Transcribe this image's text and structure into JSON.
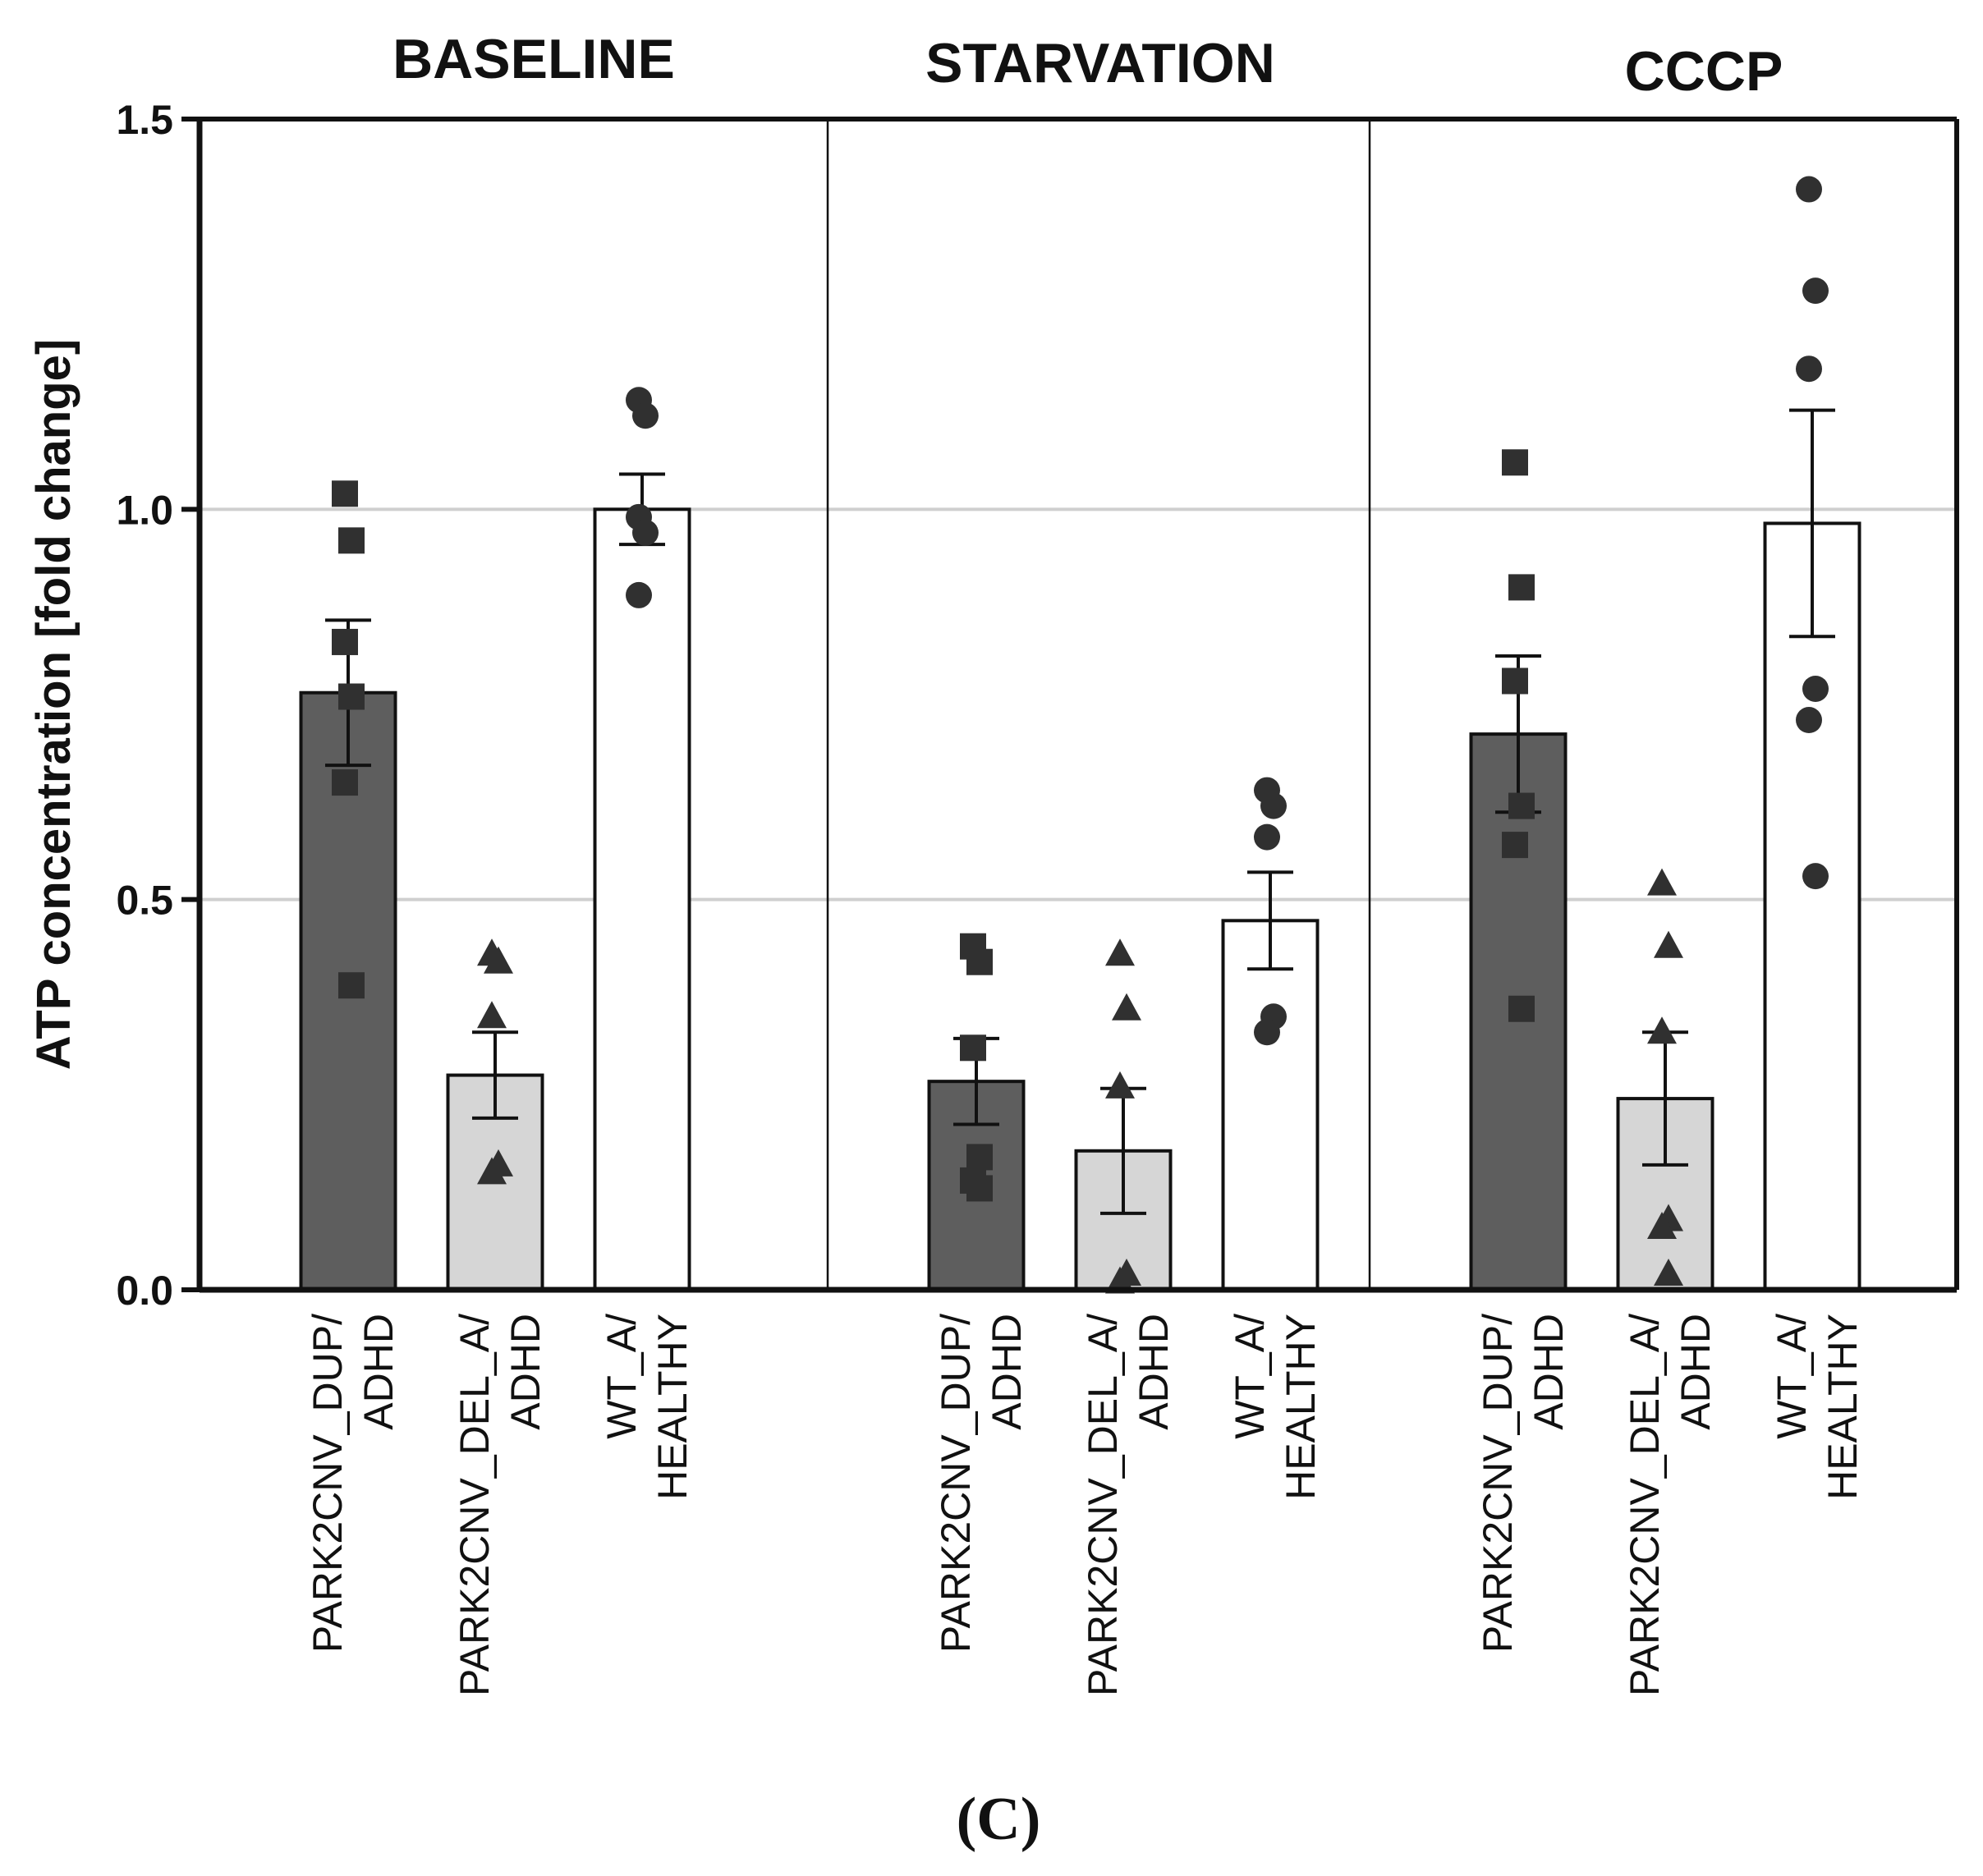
{
  "chart_data": {
    "type": "bar",
    "ylabel": "ATP concentration [fold change]",
    "ylim": [
      0,
      1.5
    ],
    "yticks": [
      "0.0",
      "0.5",
      "1.0",
      "1.5"
    ],
    "ytick_values": [
      0,
      0.5,
      1.0,
      1.5
    ],
    "gridlines": [
      0.5,
      1.0
    ],
    "caption": "(C)",
    "categories": [
      {
        "line1": "PARK2CNV_DUP/",
        "line2": "ADHD"
      },
      {
        "line1": "PARK2CNV_DEL_A/",
        "line2": "ADHD"
      },
      {
        "line1": "WT_A/",
        "line2": "HEALTHY"
      }
    ],
    "colors": {
      "dup": "#5e5e5e",
      "del": "#d6d6d6",
      "wt": "#ffffff",
      "dup_marker": "#303030",
      "del_marker": "#303030",
      "wt_marker": "#303030"
    },
    "panels": [
      {
        "title": "BASELINE",
        "bars": [
          {
            "category": "PARK2CNV_DUP/ADHD",
            "mean": 0.765,
            "sem": 0.093,
            "marker": "square",
            "points": [
              1.02,
              0.96,
              0.83,
              0.76,
              0.65,
              0.39
            ]
          },
          {
            "category": "PARK2CNV_DEL_A/ADHD",
            "mean": 0.275,
            "sem": 0.055,
            "marker": "triangle",
            "points": [
              0.43,
              0.42,
              0.35,
              0.16,
              0.15
            ]
          },
          {
            "category": "WT_A/HEALTHY",
            "mean": 1.0,
            "sem": 0.045,
            "marker": "circle",
            "points": [
              1.14,
              1.12,
              0.99,
              0.97,
              0.89
            ]
          }
        ]
      },
      {
        "title": "STARVATION",
        "bars": [
          {
            "category": "PARK2CNV_DUP/ADHD",
            "mean": 0.267,
            "sem": 0.055,
            "marker": "square",
            "points": [
              0.44,
              0.42,
              0.31,
              0.17,
              0.14,
              0.13
            ]
          },
          {
            "category": "PARK2CNV_DEL_A/ADHD",
            "mean": 0.178,
            "sem": 0.08,
            "marker": "triangle",
            "points": [
              0.43,
              0.36,
              0.26,
              0.02,
              0.01
            ]
          },
          {
            "category": "WT_A/HEALTHY",
            "mean": 0.473,
            "sem": 0.062,
            "marker": "circle",
            "points": [
              0.64,
              0.62,
              0.58,
              0.35,
              0.33
            ]
          }
        ]
      },
      {
        "title": "CCCP",
        "bars": [
          {
            "category": "PARK2CNV_DUP/ADHD",
            "mean": 0.712,
            "sem": 0.1,
            "marker": "square",
            "points": [
              1.06,
              0.9,
              0.78,
              0.62,
              0.57,
              0.36
            ]
          },
          {
            "category": "PARK2CNV_DEL_A/ADHD",
            "mean": 0.245,
            "sem": 0.085,
            "marker": "triangle",
            "points": [
              0.52,
              0.44,
              0.33,
              0.09,
              0.08,
              0.02
            ]
          },
          {
            "category": "WT_A/HEALTHY",
            "mean": 0.982,
            "sem": 0.145,
            "marker": "circle",
            "points": [
              1.41,
              1.28,
              1.18,
              0.77,
              0.73,
              0.53
            ]
          }
        ]
      }
    ]
  }
}
